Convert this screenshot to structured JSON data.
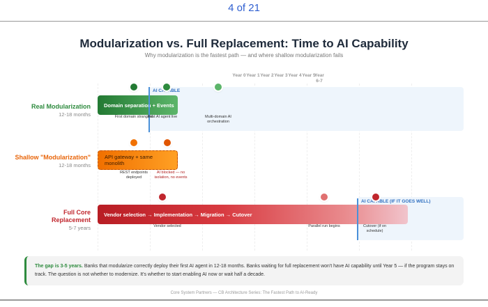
{
  "counter": "4 of 21",
  "title": "Modularization vs. Full Replacement: Time to AI Capability",
  "subtitle": "Why modularization is the fastest path — and where shallow modularization fails",
  "years": [
    "Year 0",
    "Year 1",
    "Year 2",
    "Year 3",
    "Year 4",
    "Year 5",
    "Year 6-7"
  ],
  "rows": [
    {
      "name": "Real Modularization",
      "duration": "12-18 months",
      "bar": "Domain separation + Events",
      "capable": "AI CAPABLE",
      "milestones": [
        "First domain strangled",
        "First AI agent live",
        "Multi-domain AI orchestration"
      ],
      "color": "#2e8b3e"
    },
    {
      "name": "Shallow \"Modularization\"",
      "duration": "12-18 months",
      "bar": "API gateway + same monolith",
      "milestones": [
        "REST endpoints deployed",
        "AI blocked — no isolation, no events"
      ],
      "color": "#e8650a"
    },
    {
      "name": "Full Core Replacement",
      "duration": "5-7 years",
      "bar": "Vendor selection → Implementation → Migration → Cutover",
      "capable": "AI CAPABLE (IF IT GOES WELL)",
      "milestones": [
        "Vendor selected",
        "Parallel run begins",
        "Cutover (if on schedule)"
      ],
      "color": "#c0262d"
    }
  ],
  "callout": {
    "lead": "The gap is 3-5 years.",
    "text": " Banks that modularize correctly deploy their first AI agent in 12-18 months. Banks waiting for full replacement won't have AI capability until Year 5 — if the program stays on track. The question is not whether to modernize. It's whether to start enabling AI now or wait half a decade."
  },
  "footer": "Core System Partners — CB Architecture Series: The Fastest Path to AI-Ready"
}
